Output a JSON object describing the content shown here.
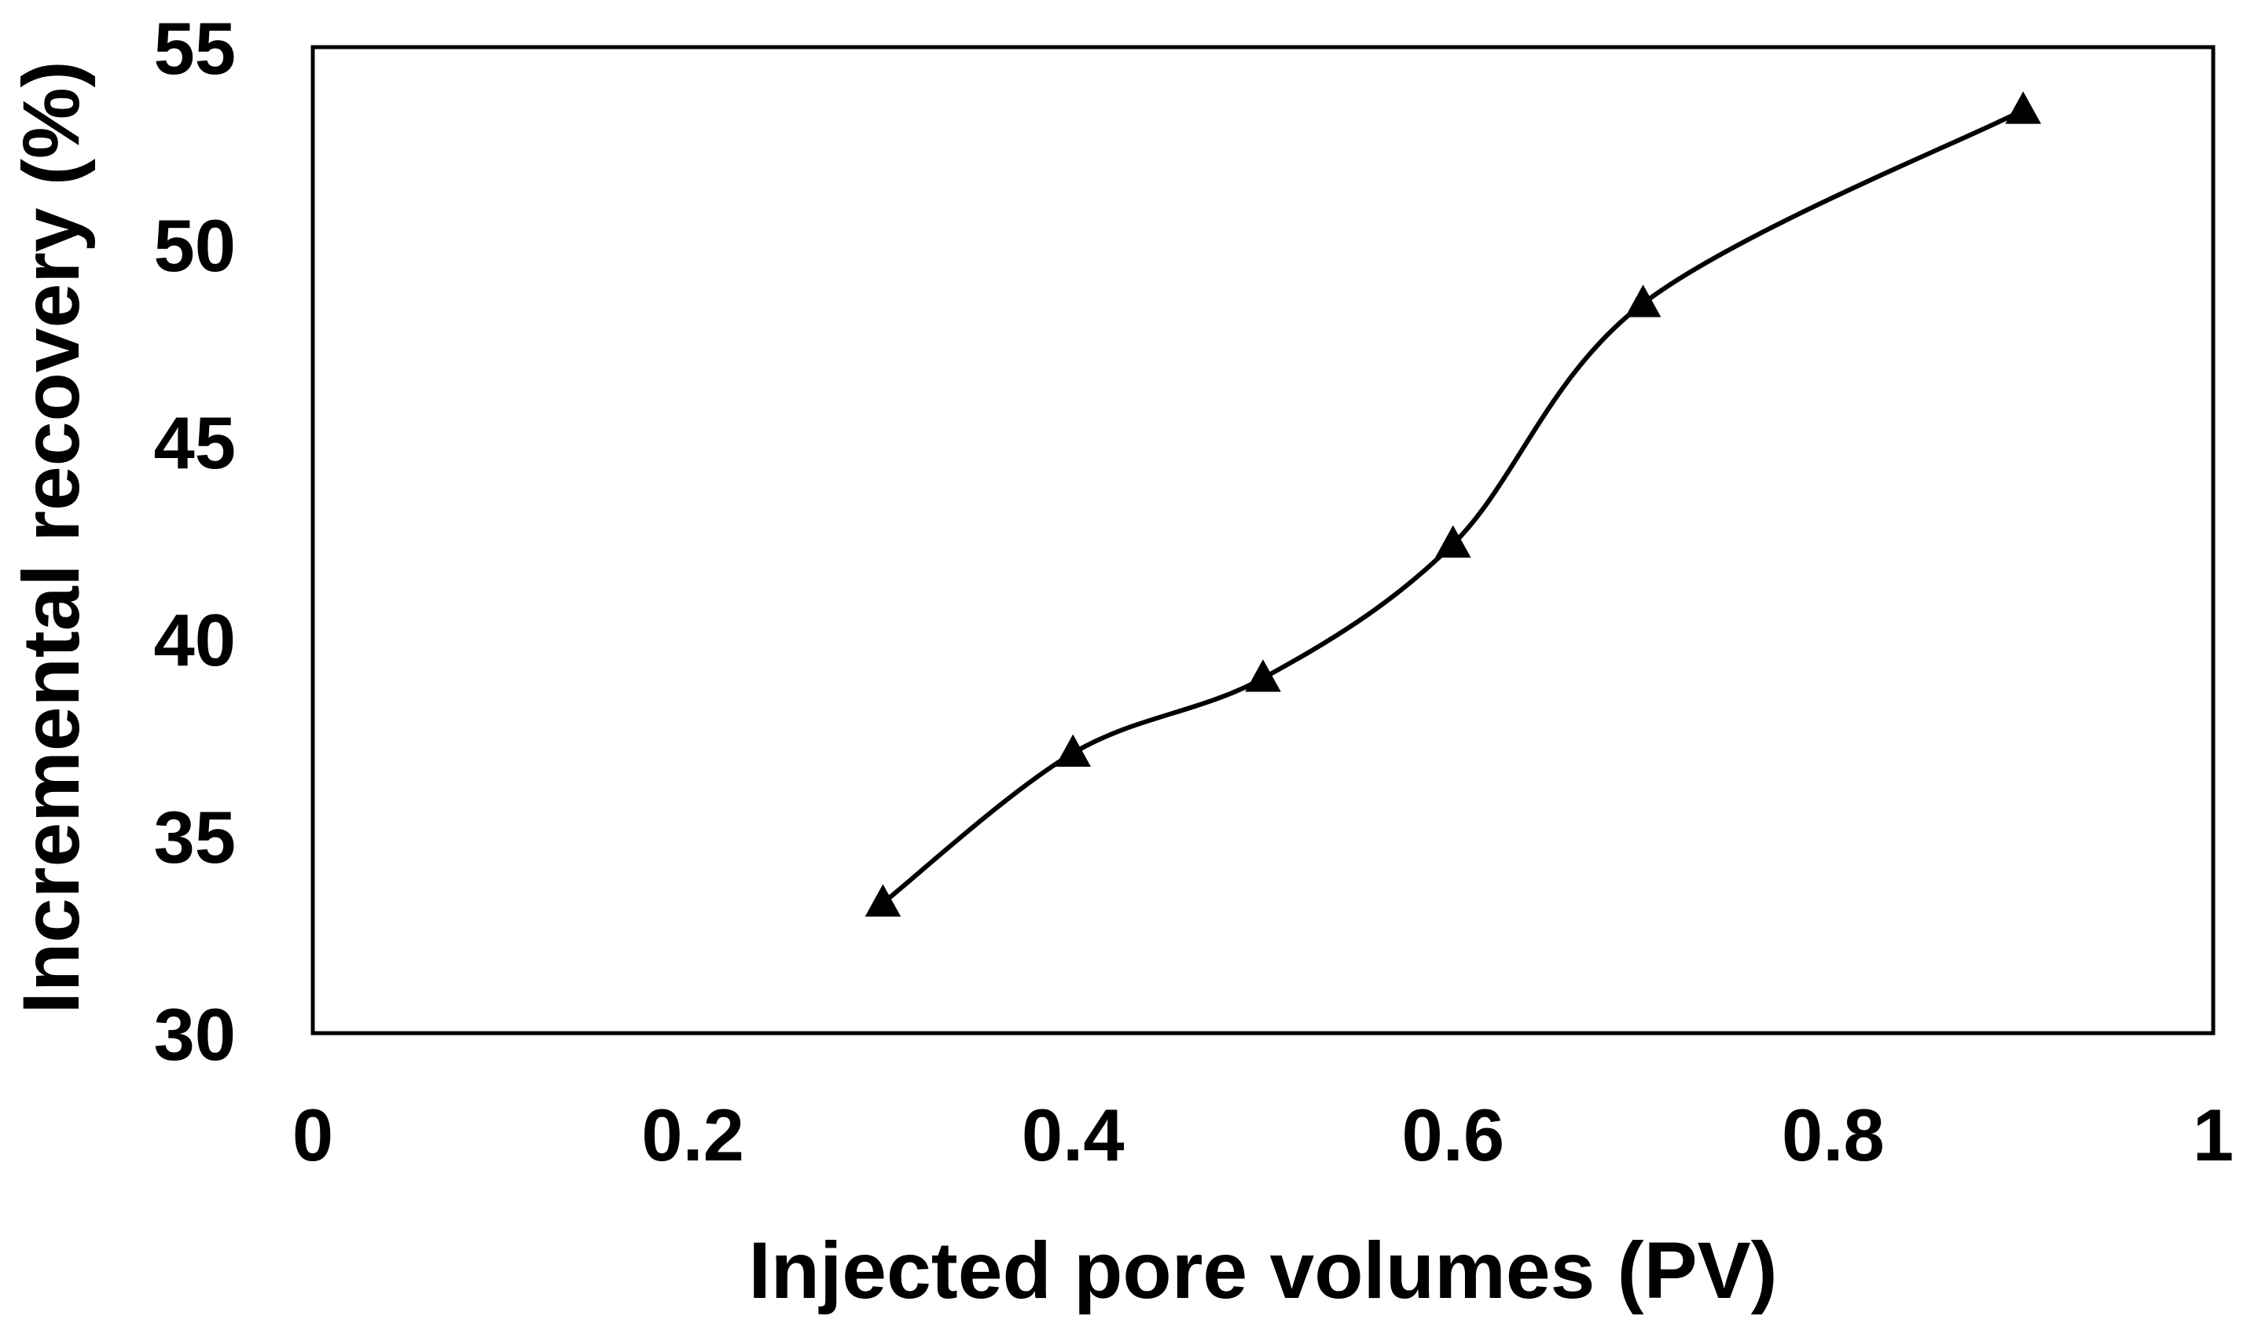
{
  "chart_data": {
    "type": "line",
    "title": "",
    "xlabel": "Injected pore volumes (PV)",
    "ylabel": "Incremental recovery (%)",
    "xlim": [
      0,
      1
    ],
    "ylim": [
      30,
      55
    ],
    "x_ticks": [
      "0",
      "0.2",
      "0.4",
      "0.6",
      "0.8",
      "1"
    ],
    "y_ticks": [
      "30",
      "35",
      "40",
      "45",
      "50",
      "55"
    ],
    "grid": false,
    "legend": "none",
    "series": [
      {
        "name": "Incremental recovery",
        "marker": "triangle",
        "smooth": true,
        "color": "#000000",
        "x": [
          0.3,
          0.4,
          0.5,
          0.6,
          0.7,
          0.9
        ],
        "y": [
          33.3,
          37.1,
          39.0,
          42.4,
          48.5,
          53.4
        ]
      }
    ]
  }
}
